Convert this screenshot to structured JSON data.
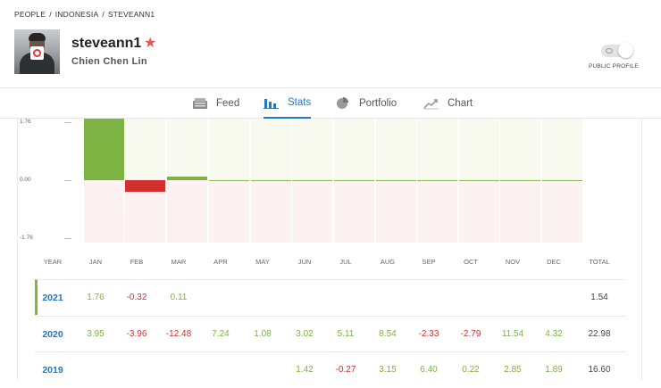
{
  "breadcrumb": [
    "PEOPLE",
    "INDONESIA",
    "STEVEANN1"
  ],
  "profile": {
    "username": "steveann1",
    "full_name": "Chien Chen Lin",
    "star_icon": "star-icon",
    "public_profile_label": "PUBLIC PROFILE",
    "public_profile_on": true
  },
  "tabs": [
    {
      "label": "Feed",
      "icon": "feed-icon",
      "active": false
    },
    {
      "label": "Stats",
      "icon": "bar-chart-icon",
      "active": true
    },
    {
      "label": "Portfolio",
      "icon": "pie-chart-icon",
      "active": false
    },
    {
      "label": "Chart",
      "icon": "line-chart-icon",
      "active": false
    }
  ],
  "chart_data": {
    "type": "bar",
    "categories": [
      "JAN",
      "FEB",
      "MAR",
      "APR",
      "MAY",
      "JUN",
      "JUL",
      "AUG",
      "SEP",
      "OCT",
      "NOV",
      "DEC"
    ],
    "values": [
      1.76,
      -0.32,
      0.11,
      0,
      0,
      0,
      0,
      0,
      0,
      0,
      0,
      0
    ],
    "yticks": [
      "1.76",
      "0.00",
      "-1.76"
    ],
    "ylim": [
      -1.76,
      1.76
    ],
    "colors": {
      "positive": "#7cb342",
      "negative": "#d32f2f"
    }
  },
  "table": {
    "headers": [
      "YEAR",
      "JAN",
      "FEB",
      "MAR",
      "APR",
      "MAY",
      "JUN",
      "JUL",
      "AUG",
      "SEP",
      "OCT",
      "NOV",
      "DEC",
      "TOTAL"
    ],
    "rows": [
      {
        "year": "2021",
        "values": [
          "1.76",
          "-0.32",
          "0.11",
          "",
          "",
          "",
          "",
          "",
          "",
          "",
          "",
          ""
        ],
        "total": "1.54"
      },
      {
        "year": "2020",
        "values": [
          "3.95",
          "-3.96",
          "-12.48",
          "7.24",
          "1.08",
          "3.02",
          "5.11",
          "8.54",
          "-2.33",
          "-2.79",
          "11.54",
          "4.32"
        ],
        "total": "22.98"
      },
      {
        "year": "2019",
        "values": [
          "",
          "",
          "",
          "",
          "",
          "1.42",
          "-0.27",
          "3.15",
          "6.40",
          "0.22",
          "2.85",
          "1.89"
        ],
        "total": "16.60"
      }
    ]
  }
}
